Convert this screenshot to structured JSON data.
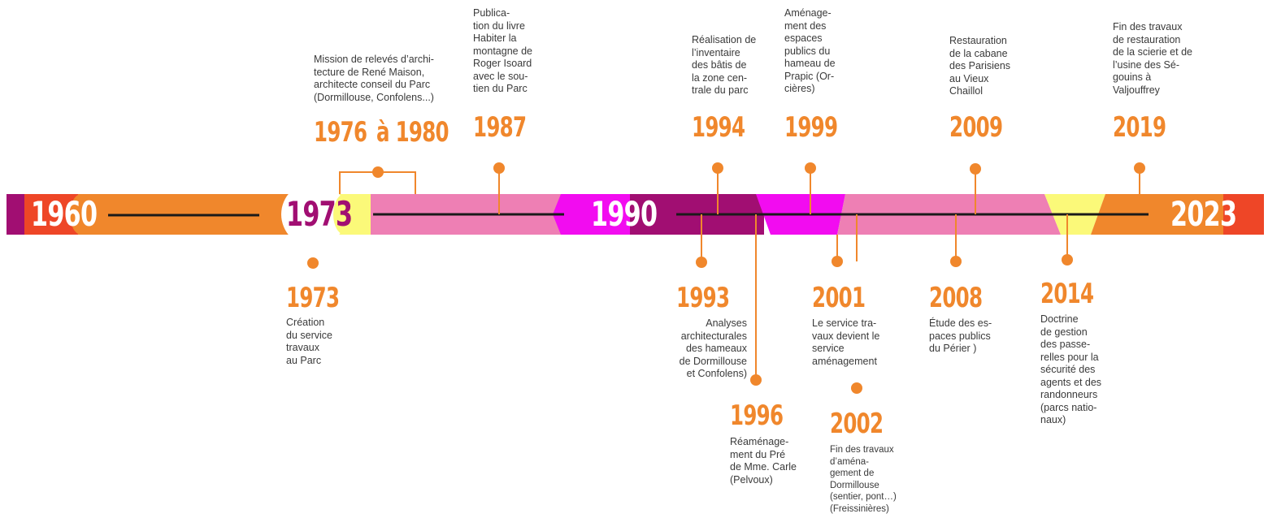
{
  "colors": {
    "orange": "#f0872c",
    "red": "#ee4627",
    "plum": "#a10e72",
    "magenta": "#f20cf0",
    "pink": "#ee7fb4",
    "yellow": "#fbf979",
    "axis": "#1a1a1a",
    "text": "#3a3a3a"
  },
  "band_labels": {
    "start": "1960",
    "milestone_1973": "1973",
    "milestone_1990": "1990",
    "end": "2023"
  },
  "events_above": [
    {
      "year": "1976",
      "year_suffix": "à 1980",
      "text": "Mission de relevés d’archi-\ntecture de René Maison,\narchitecte conseil du Parc\n(Dormillouse, Confolens...)"
    },
    {
      "year": "1987",
      "text": "Publica-\ntion du livre\nHabiter la\nmontagne de\nRoger Isoard\navec le sou-\ntien du Parc"
    },
    {
      "year": "1994",
      "text": "Réalisation de\nl’inventaire\ndes bâtis de\nla zone cen-\ntrale du parc"
    },
    {
      "year": "1999",
      "text": "Aménage-\nment des\nespaces\npublics du\nhameau de\nPrapic (Or-\ncières)"
    },
    {
      "year": "2009",
      "text": "Restauration\nde la cabane\ndes Parisiens\nau Vieux\nChaillol"
    },
    {
      "year": "2019",
      "text": "Fin des travaux\nde restauration\nde la scierie et de\nl’usine des Sé-\ngouins à\nValjouffrey"
    }
  ],
  "events_below": [
    {
      "year": "1973",
      "text": "Création\ndu service\ntravaux\nau Parc"
    },
    {
      "year": "1993",
      "text": "Analyses\narchitecturales\ndes hameaux\nde Dormillouse\net Confolens)"
    },
    {
      "year": "1996",
      "text": "Réaménage-\nment du Pré\nde Mme. Carle\n(Pelvoux)"
    },
    {
      "year": "2001",
      "text": "Le service tra-\nvaux devient le\nservice\naménagement"
    },
    {
      "year": "2002",
      "text": "Fin des travaux\nd’aména-\ngement de\nDormillouse\n(sentier, pont…)\n(Freissinières)"
    },
    {
      "year": "2008",
      "text": "Étude des es-\npaces publics\ndu Périer )"
    },
    {
      "year": "2014",
      "text": "Doctrine\nde gestion\ndes passe-\nrelles pour la\nsécurité des\nagents et des\nrandonneurs\n(parcs natio-\nnaux)"
    }
  ]
}
